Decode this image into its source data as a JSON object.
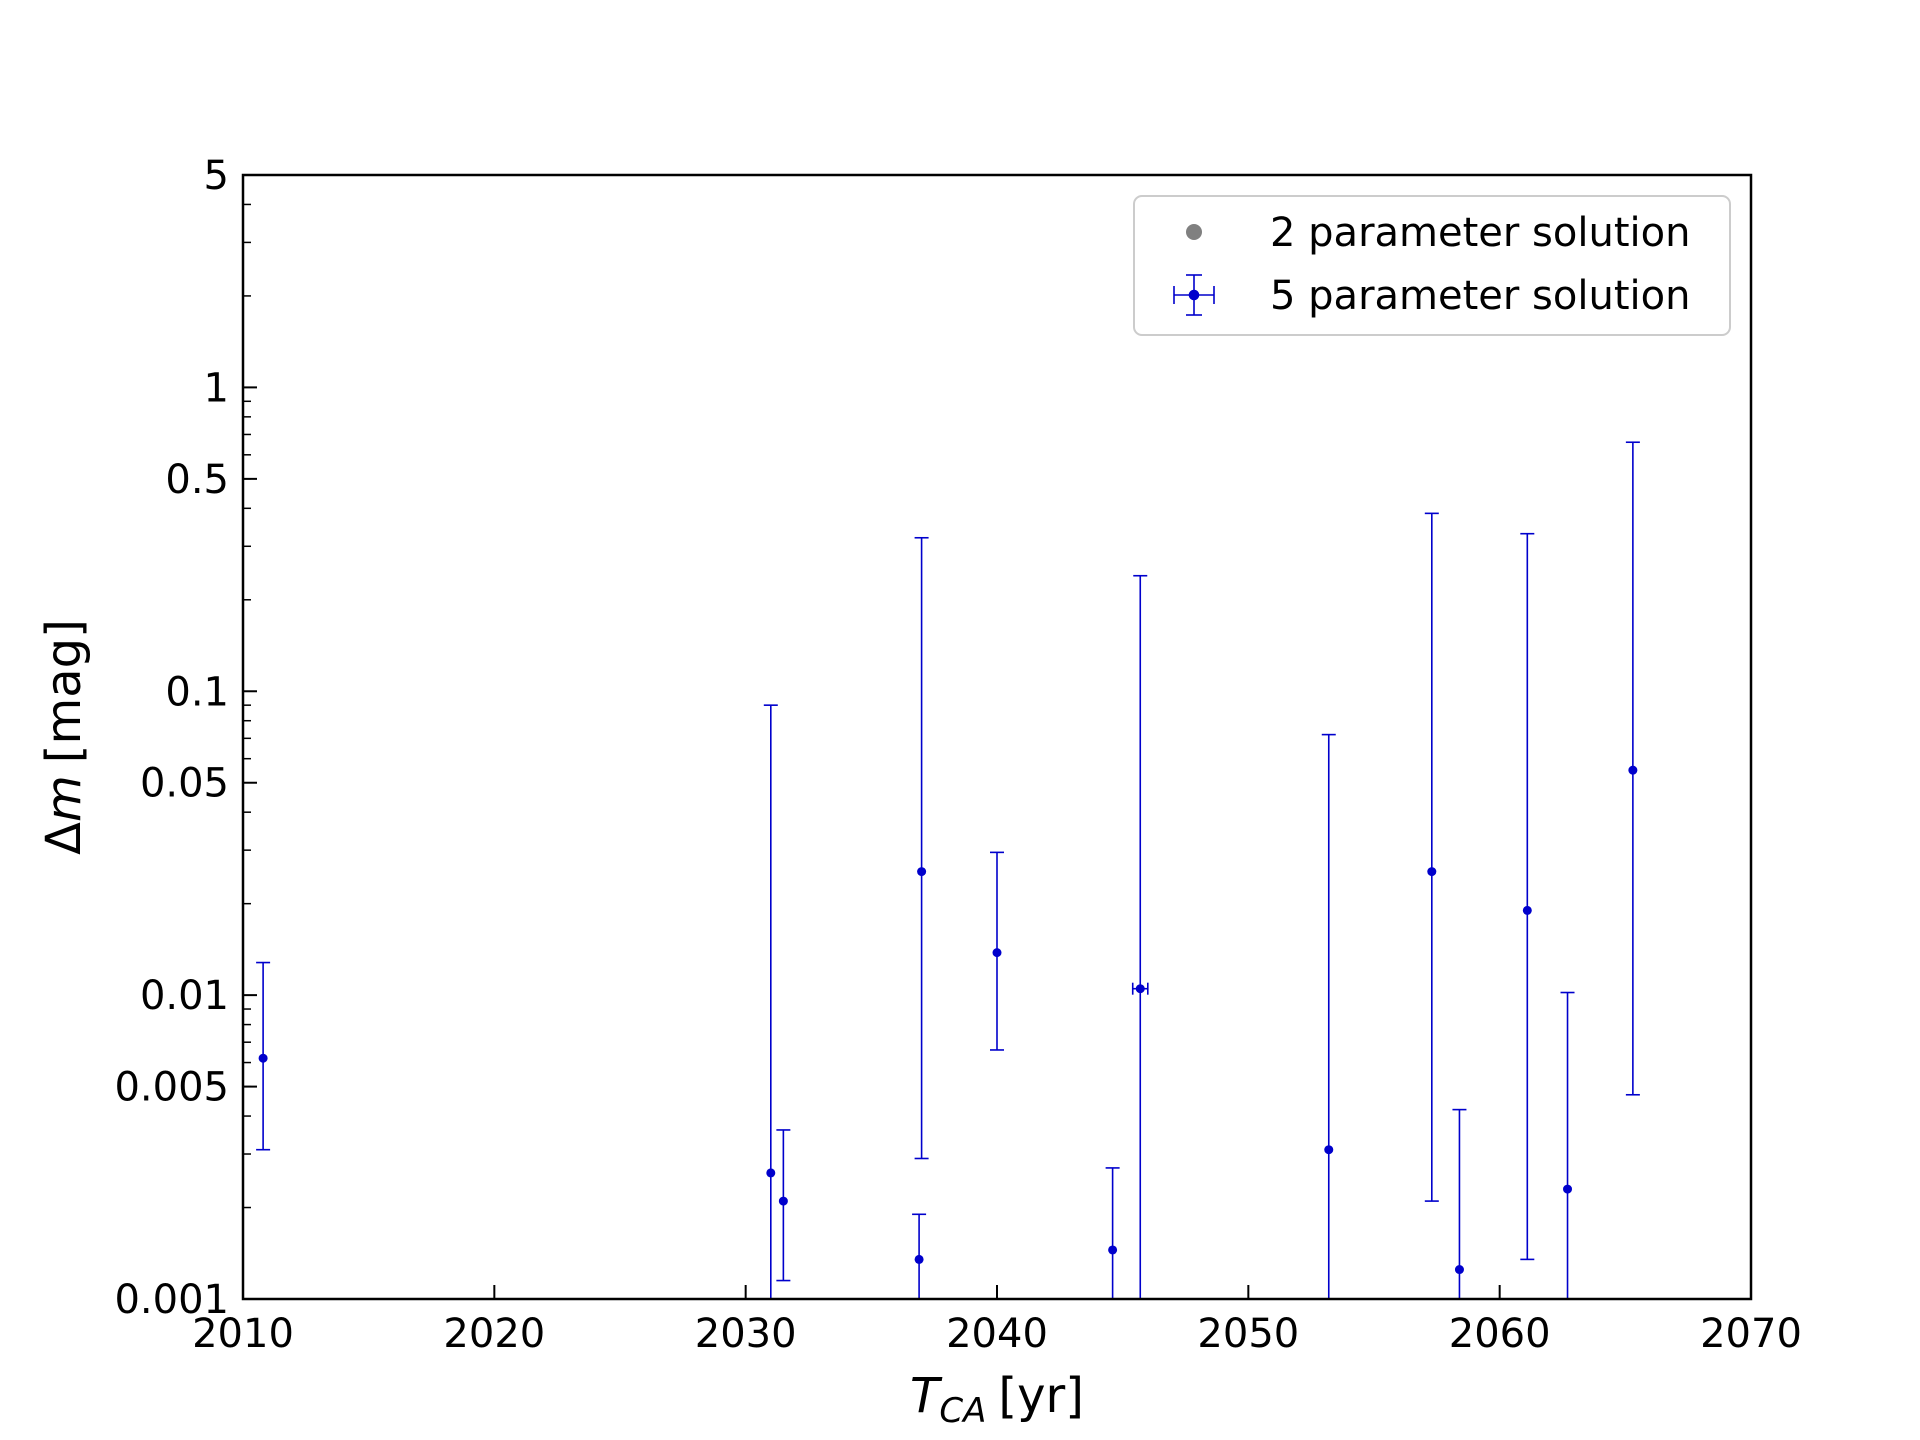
{
  "chart_data": {
    "type": "scatter",
    "xlabel": {
      "main": "T",
      "sub": "CA",
      "unit": "[yr]"
    },
    "ylabel": {
      "main": "Δ",
      "italic": "m",
      "unit": "[mag]"
    },
    "xlim": [
      2010,
      2070
    ],
    "ylim": [
      0.001,
      5
    ],
    "yscale": "log",
    "x_ticks": [
      2010,
      2020,
      2030,
      2040,
      2050,
      2060,
      2070
    ],
    "y_ticks": [
      0.001,
      0.005,
      0.01,
      0.05,
      0.1,
      0.5,
      1,
      5
    ],
    "x_tick_labels": [
      "2010",
      "2020",
      "2030",
      "2040",
      "2050",
      "2060",
      "2070"
    ],
    "y_tick_labels": [
      "0.001",
      "0.005",
      "0.01",
      "0.05",
      "0.1",
      "0.5",
      "1",
      "5"
    ],
    "grid": false,
    "legend": {
      "placement": "top-right",
      "entries": [
        "2 parameter solution",
        "5 parameter solution"
      ]
    },
    "series": [
      {
        "name": "2 parameter solution",
        "color": "#808080",
        "points": []
      },
      {
        "name": "5 parameter solution",
        "color": "#0000cc",
        "points": [
          {
            "x": 2010.8,
            "y": 0.0062,
            "ylo": 0.0031,
            "yhi": 0.0128,
            "xerr": 0
          },
          {
            "x": 2031.0,
            "y": 0.0026,
            "ylo": 0.0008,
            "yhi": 0.09,
            "xerr": 0
          },
          {
            "x": 2031.5,
            "y": 0.0021,
            "ylo": 0.00115,
            "yhi": 0.0036,
            "xerr": 0
          },
          {
            "x": 2036.9,
            "y": 0.00135,
            "ylo": 0.0009,
            "yhi": 0.0019,
            "xerr": 0
          },
          {
            "x": 2037.0,
            "y": 0.0255,
            "ylo": 0.0029,
            "yhi": 0.32,
            "xerr": 0
          },
          {
            "x": 2040.0,
            "y": 0.0138,
            "ylo": 0.0066,
            "yhi": 0.0295,
            "xerr": 0
          },
          {
            "x": 2044.6,
            "y": 0.00145,
            "ylo": 0.0009,
            "yhi": 0.0027,
            "xerr": 0
          },
          {
            "x": 2045.7,
            "y": 0.0105,
            "ylo": 0.0008,
            "yhi": 0.24,
            "xerr": 0.3
          },
          {
            "x": 2053.2,
            "y": 0.0031,
            "ylo": 0.0008,
            "yhi": 0.072,
            "xerr": 0
          },
          {
            "x": 2057.3,
            "y": 0.0255,
            "ylo": 0.0021,
            "yhi": 0.385,
            "xerr": 0
          },
          {
            "x": 2058.4,
            "y": 0.00125,
            "ylo": 0.0009,
            "yhi": 0.0042,
            "xerr": 0
          },
          {
            "x": 2061.1,
            "y": 0.019,
            "ylo": 0.00135,
            "yhi": 0.33,
            "xerr": 0
          },
          {
            "x": 2062.7,
            "y": 0.0023,
            "ylo": 0.0008,
            "yhi": 0.0102,
            "xerr": 0
          },
          {
            "x": 2065.3,
            "y": 0.055,
            "ylo": 0.0047,
            "yhi": 0.66,
            "xerr": 0
          }
        ]
      }
    ]
  }
}
